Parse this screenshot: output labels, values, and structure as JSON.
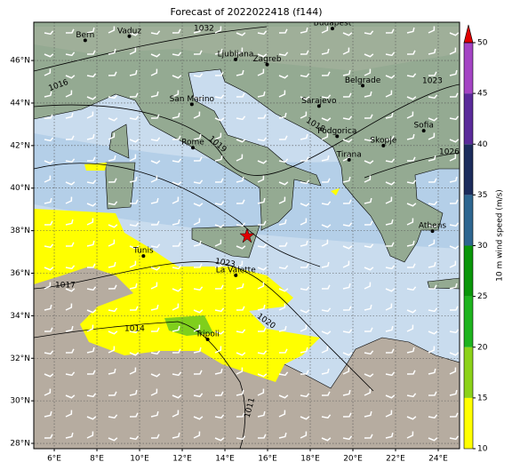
{
  "title": "Forecast of 2022022418 (f144)",
  "map": {
    "lon_range": [
      5.04,
      25.0
    ],
    "lat_range": [
      27.75,
      47.8
    ],
    "lon_ticks": [
      {
        "value": 6,
        "label": "6°E"
      },
      {
        "value": 8,
        "label": "8°E"
      },
      {
        "value": 10,
        "label": "10°E"
      },
      {
        "value": 12,
        "label": "12°E"
      },
      {
        "value": 14,
        "label": "14°E"
      },
      {
        "value": 16,
        "label": "16°E"
      },
      {
        "value": 18,
        "label": "18°E"
      },
      {
        "value": 20,
        "label": "20°E"
      },
      {
        "value": 22,
        "label": "22°E"
      },
      {
        "value": 24,
        "label": "24°E"
      }
    ],
    "lat_ticks": [
      {
        "value": 28,
        "label": "28°N"
      },
      {
        "value": 30,
        "label": "30°N"
      },
      {
        "value": 32,
        "label": "32°N"
      },
      {
        "value": 34,
        "label": "34°N"
      },
      {
        "value": 36,
        "label": "36°N"
      },
      {
        "value": 38,
        "label": "38°N"
      },
      {
        "value": 40,
        "label": "40°N"
      },
      {
        "value": 42,
        "label": "42°N"
      },
      {
        "value": 44,
        "label": "44°N"
      },
      {
        "value": 46,
        "label": "46°N"
      }
    ],
    "cities": [
      {
        "name": "Bern",
        "lon": 7.45,
        "lat": 46.95
      },
      {
        "name": "Vaduz",
        "lon": 9.52,
        "lat": 47.14
      },
      {
        "name": "Budapest",
        "lon": 19.04,
        "lat": 47.5
      },
      {
        "name": "Ljubljana",
        "lon": 14.5,
        "lat": 46.05
      },
      {
        "name": "Zagreb",
        "lon": 15.98,
        "lat": 45.81
      },
      {
        "name": "Belgrade",
        "lon": 20.46,
        "lat": 44.82
      },
      {
        "name": "San Marino",
        "lon": 12.45,
        "lat": 43.94
      },
      {
        "name": "Sarajevo",
        "lon": 18.41,
        "lat": 43.86
      },
      {
        "name": "Sofia",
        "lon": 23.32,
        "lat": 42.7
      },
      {
        "name": "Rome",
        "lon": 12.5,
        "lat": 41.9
      },
      {
        "name": "Podgorica",
        "lon": 19.26,
        "lat": 42.44
      },
      {
        "name": "Skopje",
        "lon": 21.43,
        "lat": 42.0
      },
      {
        "name": "Tirana",
        "lon": 19.82,
        "lat": 41.33
      },
      {
        "name": "Athens",
        "lon": 23.73,
        "lat": 37.98
      },
      {
        "name": "Tunis",
        "lon": 10.18,
        "lat": 36.81
      },
      {
        "name": "La Valette",
        "lon": 14.51,
        "lat": 35.9
      },
      {
        "name": "Tripoli",
        "lon": 13.19,
        "lat": 32.89
      }
    ],
    "isobar_labels": [
      "1032",
      "1016",
      "1023",
      "1019",
      "1018",
      "1026",
      "1023",
      "1017",
      "1014",
      "1020",
      "1011"
    ]
  },
  "colorbar": {
    "label": "10 m wind speed (m/s)",
    "levels": [
      10,
      15,
      20,
      25,
      30,
      35,
      40,
      45,
      50
    ],
    "colors": [
      "#ffff00",
      "#8cd219",
      "#1eb41e",
      "#0a960a",
      "#2e6690",
      "#1c2c5c",
      "#5a2a9a",
      "#a444c4"
    ],
    "extend_color": "#e00000"
  }
}
